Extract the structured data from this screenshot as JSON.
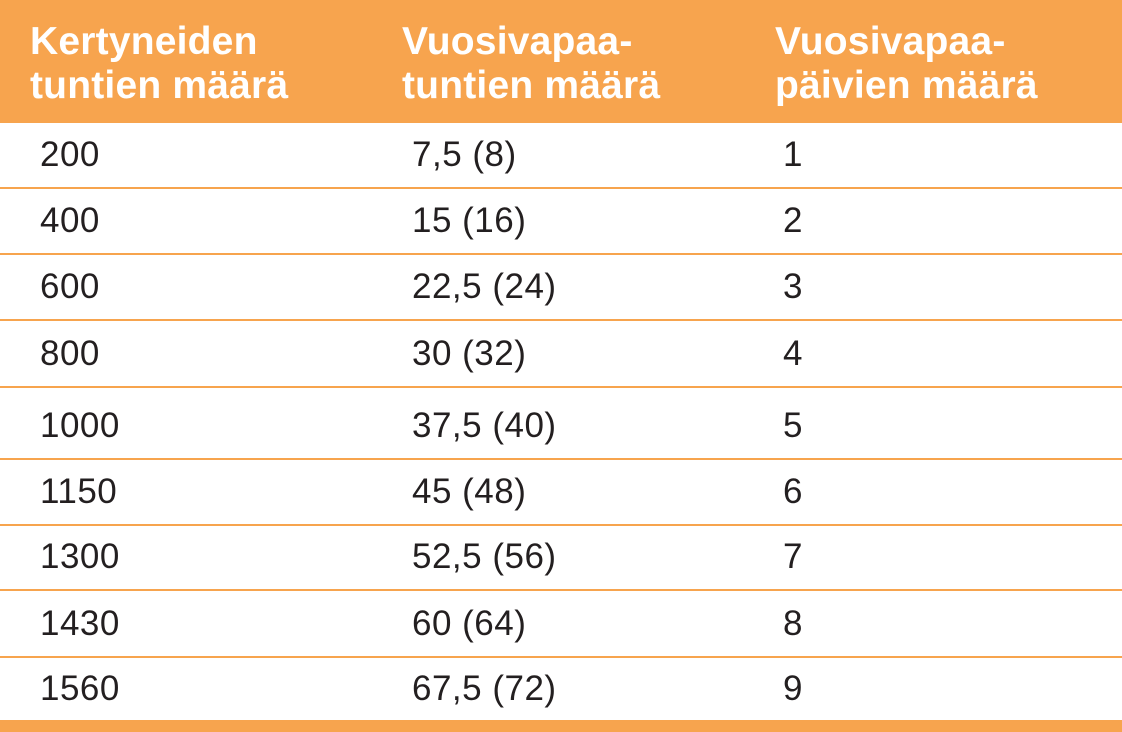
{
  "table": {
    "headers": [
      "Kertyneiden\ntuntien määrä",
      "Vuosivapaa-\ntuntien määrä",
      "Vuosivapaa-\npäivien määrä"
    ],
    "rows": [
      [
        "200",
        "7,5 (8)",
        "1"
      ],
      [
        "400",
        "15 (16)",
        "2"
      ],
      [
        "600",
        "22,5 (24)",
        "3"
      ],
      [
        "800",
        "30 (32)",
        "4"
      ],
      [
        "1000",
        "37,5 (40)",
        "5"
      ],
      [
        "1150",
        "45 (48)",
        "6"
      ],
      [
        "1300",
        "52,5 (56)",
        "7"
      ],
      [
        "1430",
        "60 (64)",
        "8"
      ],
      [
        "1560",
        "67,5 (72)",
        "9"
      ]
    ]
  },
  "colors": {
    "accent": "#f7a44e",
    "text": "#231f20",
    "header_text": "#ffffff"
  }
}
